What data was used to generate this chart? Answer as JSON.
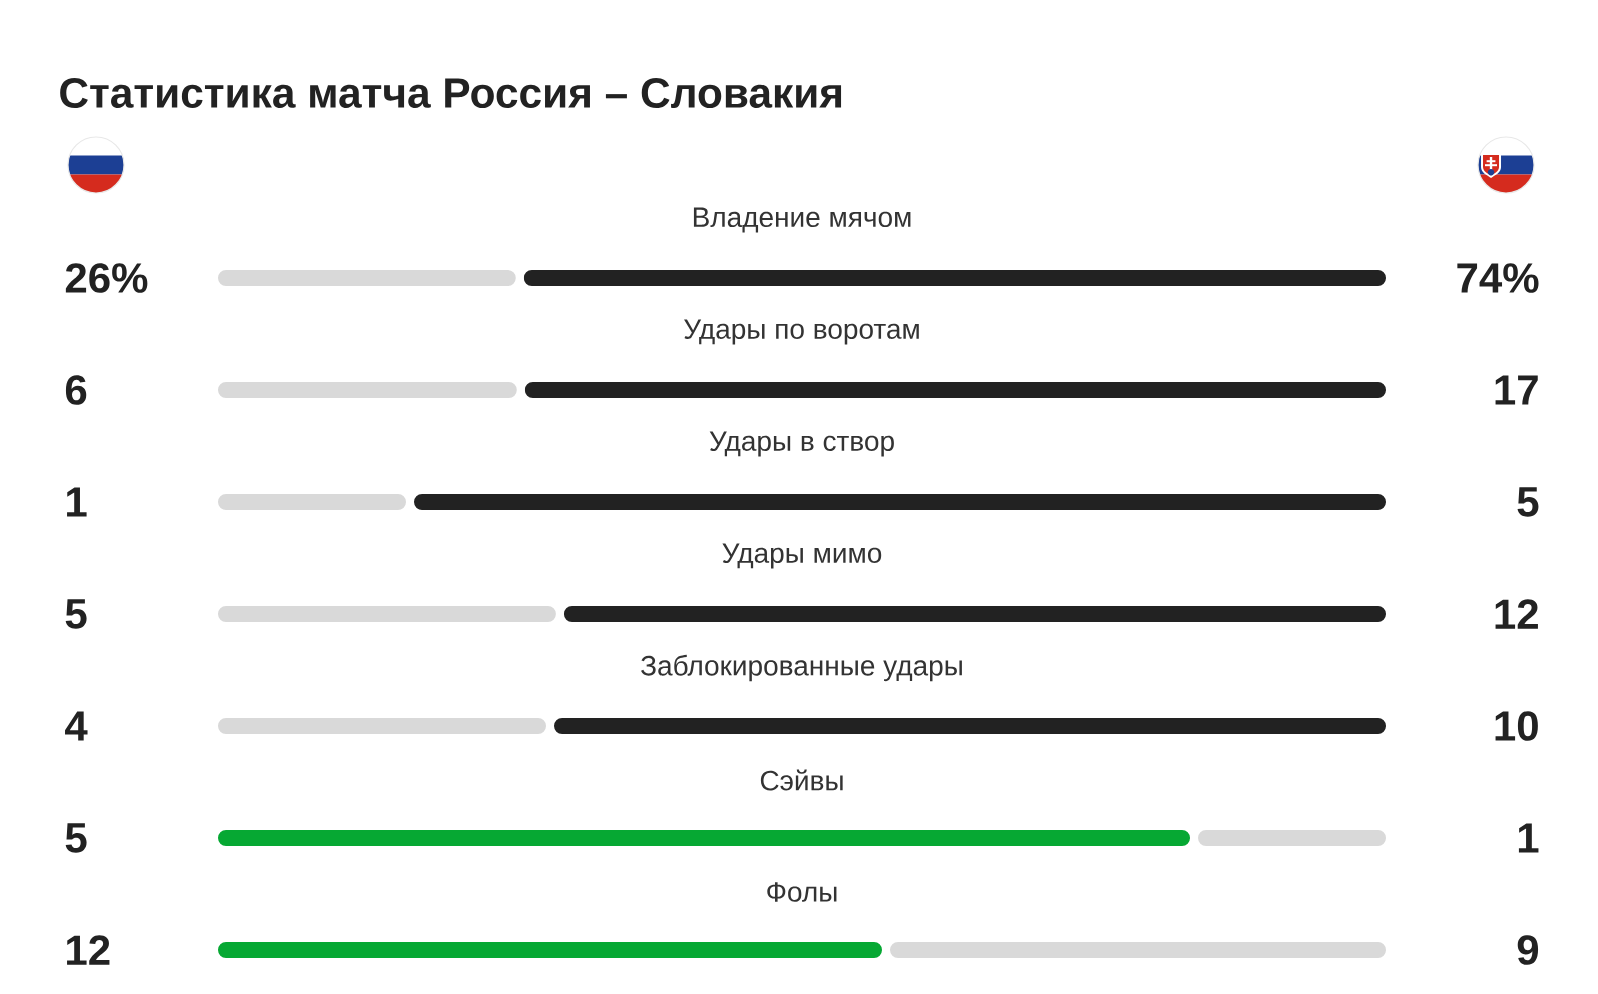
{
  "chart_data": [
    {
      "type": "bar",
      "title": "Статистика матча Россия – Словакия",
      "orientation": "horizontal",
      "stacked": true,
      "tick_labels": "y",
      "categories": [
        "Владение мячом"
      ],
      "xlim": [
        0,
        100
      ],
      "series": [
        {
          "color": "#d9d9d9",
          "values": [
            26
          ],
          "value_labels": [
            "26%"
          ]
        },
        {
          "color": "#222222",
          "values": [
            74
          ],
          "value_labels": [
            "74%"
          ]
        }
      ]
    },
    {
      "type": "bar",
      "orientation": "horizontal",
      "stacked": true,
      "tick_labels": "y",
      "data_labels": true,
      "categories": [
        "Удары по воротам"
      ],
      "xlim": [
        0,
        23
      ],
      "series": [
        {
          "color": "#d9d9d9",
          "values": [
            6
          ]
        },
        {
          "color": "#222222",
          "values": [
            17
          ]
        }
      ]
    },
    {
      "type": "bar",
      "orientation": "horizontal",
      "stacked": true,
      "tick_labels": "y",
      "data_labels": true,
      "categories": [
        "Удары в створ"
      ],
      "xlim": [
        0,
        6
      ],
      "series": [
        {
          "color": "#d9d9d9",
          "values": [
            1
          ]
        },
        {
          "color": "#222222",
          "values": [
            5
          ]
        }
      ]
    },
    {
      "type": "bar",
      "orientation": "horizontal",
      "stacked": true,
      "tick_labels": "y",
      "data_labels": true,
      "categories": [
        "Удары мимо"
      ],
      "xlim": [
        0,
        17
      ],
      "series": [
        {
          "color": "#d9d9d9",
          "values": [
            5
          ]
        },
        {
          "color": "#222222",
          "values": [
            12
          ]
        }
      ]
    },
    {
      "type": "bar",
      "orientation": "horizontal",
      "stacked": true,
      "tick_labels": "y",
      "data_labels": true,
      "categories": [
        "Заблокированные удары"
      ],
      "xlim": [
        0,
        14
      ],
      "series": [
        {
          "color": "#d9d9d9",
          "values": [
            4
          ]
        },
        {
          "color": "#222222",
          "values": [
            10
          ]
        }
      ]
    },
    {
      "type": "bar",
      "orientation": "horizontal",
      "stacked": true,
      "tick_labels": "y",
      "data_labels": true,
      "categories": [
        "Сэйвы"
      ],
      "xlim": [
        0,
        6
      ],
      "series": [
        {
          "color": "#06a833",
          "values": [
            5
          ]
        },
        {
          "color": "#d9d9d9",
          "values": [
            1
          ]
        }
      ]
    },
    {
      "type": "bar",
      "orientation": "horizontal",
      "stacked": true,
      "tick_labels": "y",
      "data_labels": true,
      "categories": [
        "Фолы"
      ],
      "xlim": [
        0,
        21
      ],
      "series": [
        {
          "color": "#06a833",
          "values": [
            12
          ]
        },
        {
          "color": "#d9d9d9",
          "values": [
            9
          ]
        }
      ]
    }
  ]
}
